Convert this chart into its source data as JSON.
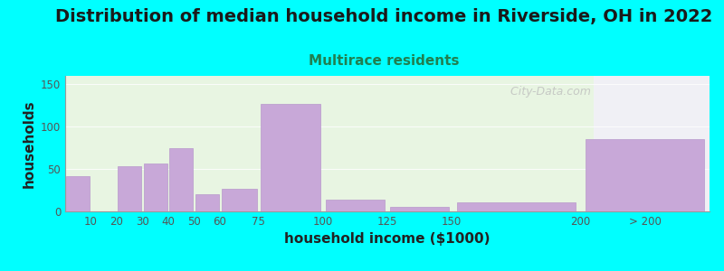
{
  "title": "Distribution of median household income in Riverside, OH in 2022",
  "subtitle": "Multirace residents",
  "xlabel": "household income ($1000)",
  "ylabel": "households",
  "background_color": "#00FFFF",
  "plot_bg_color_left": "#e8f5e2",
  "plot_bg_color_right": "#f0f0f5",
  "bar_color": "#c8a8d8",
  "bar_edgecolor": "#b898cc",
  "ylim": [
    0,
    160
  ],
  "yticks": [
    0,
    50,
    100,
    150
  ],
  "categories": [
    "10",
    "20",
    "30",
    "40",
    "50",
    "60",
    "75",
    "100",
    "125",
    "150",
    "200",
    "> 200"
  ],
  "values": [
    42,
    0,
    53,
    57,
    75,
    20,
    27,
    127,
    14,
    5,
    11,
    85
  ],
  "title_fontsize": 14,
  "subtitle_fontsize": 11,
  "subtitle_color": "#208050",
  "axis_label_fontsize": 11,
  "watermark": "  City-Data.com"
}
